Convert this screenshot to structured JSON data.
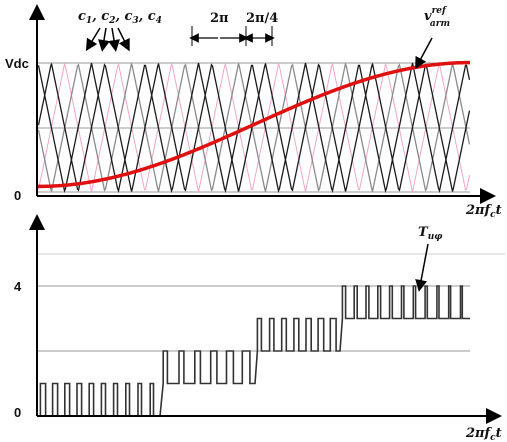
{
  "colors": {
    "carrier_dark": "#1a1a1a",
    "carrier_gray": "#8a8a8a",
    "carrier_pink": "#f2a6c4",
    "reference": "#e01010",
    "axis": "#000000",
    "grid": "#9a9a9a"
  },
  "top": {
    "y_tick_labels": [
      "Vdc",
      "0"
    ],
    "x_axis_label_main": "2πf",
    "x_axis_label_sub": "c",
    "x_axis_label_tail": "t",
    "carrier_label": "c1, c2, c3, c4",
    "carrier_names": [
      "c",
      "c",
      "c",
      "c"
    ],
    "carrier_subs": [
      "1",
      "2",
      "3",
      "4"
    ],
    "period_label": "2π",
    "shift_label": "2π/4",
    "ref_label_main": "v",
    "ref_label_sup": "ref",
    "ref_label_sub": "arm"
  },
  "bottom": {
    "y_tick_labels": [
      "4",
      "0"
    ],
    "x_axis_label_main": "2πf",
    "x_axis_label_sub": "c",
    "x_axis_label_tail": "t",
    "signal_label_main": "T",
    "signal_label_sub": "uφ"
  },
  "chart_data": [
    {
      "type": "line",
      "series": [
        {
          "name": "c1, c2, c3, c4 (phase-shifted triangular carriers)",
          "period_cycles": 1,
          "phase_shift_fraction": 0.25,
          "range": [
            0,
            1
          ]
        },
        {
          "name": "v_arm^ref",
          "shape": "rising sinusoid",
          "start": 0.02,
          "end": 0.98
        }
      ],
      "ylabel_ticks": [
        "0",
        "Vdc"
      ]
    },
    {
      "type": "line",
      "series": [
        {
          "name": "T_uφ",
          "levels": [
            0,
            1,
            2,
            3,
            4
          ],
          "segments": [
            [
              0,
              1
            ],
            [
              1,
              2
            ],
            [
              2,
              3
            ],
            [
              3,
              4
            ]
          ]
        }
      ],
      "ylabel_ticks": [
        "0",
        "4"
      ]
    }
  ]
}
